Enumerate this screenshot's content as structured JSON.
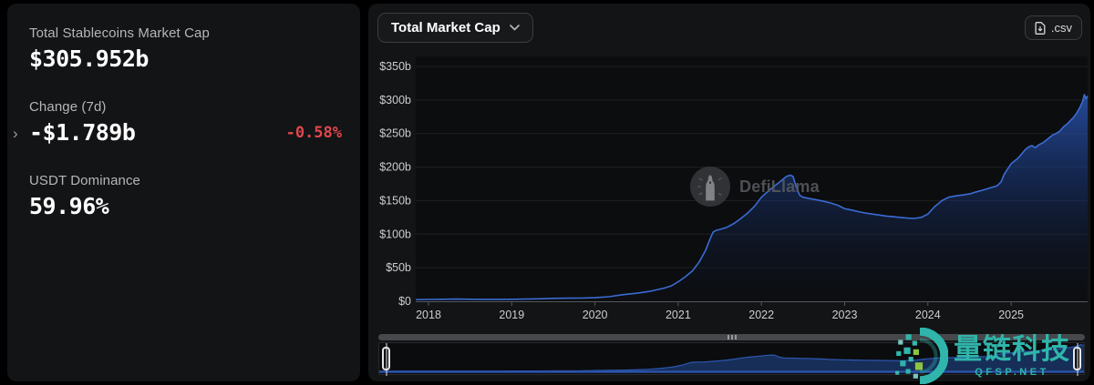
{
  "stats_panel": {
    "market_cap": {
      "label": "Total Stablecoins Market Cap",
      "value": "$305.952b"
    },
    "change_7d": {
      "label": "Change (7d)",
      "value": "-$1.789b",
      "pct": "-0.58%",
      "pct_color": "#e0484c"
    },
    "usdt_dominance": {
      "label": "USDT Dominance",
      "value": "59.96%"
    }
  },
  "chart_header": {
    "metric_dropdown": {
      "label": "Total Market Cap",
      "icon": "chevron-down-icon"
    },
    "csv_button": {
      "label": ".csv",
      "icon": "file-download-icon"
    }
  },
  "watermarks": {
    "defillama": {
      "label": "DefiLlama"
    },
    "qfsp": {
      "title": "量链科技",
      "subtitle": "QFSP.NET",
      "color": "#2fb5ab"
    }
  },
  "chart_data": {
    "type": "area",
    "title": "Total Market Cap",
    "xlabel": "",
    "ylabel": "",
    "x_ticks": [
      2018,
      2019,
      2020,
      2021,
      2022,
      2023,
      2024,
      2025
    ],
    "y_ticks": [
      0,
      50,
      100,
      150,
      200,
      250,
      300,
      350
    ],
    "y_tick_labels": [
      "$0",
      "$50b",
      "$100b",
      "$150b",
      "$200b",
      "$250b",
      "$300b",
      "$350b"
    ],
    "ylim": [
      0,
      350
    ],
    "xlim": [
      2017.85,
      2025.92
    ],
    "grid": true,
    "legend": "none",
    "line_color": "#3b6bd3",
    "units": "billions USD",
    "points": [
      [
        2017.85,
        2.5
      ],
      [
        2018.0,
        2.7
      ],
      [
        2018.17,
        3.0
      ],
      [
        2018.33,
        3.2
      ],
      [
        2018.5,
        3.0
      ],
      [
        2018.67,
        2.8
      ],
      [
        2018.83,
        2.9
      ],
      [
        2019.0,
        3.0
      ],
      [
        2019.17,
        3.3
      ],
      [
        2019.33,
        3.7
      ],
      [
        2019.5,
        4.3
      ],
      [
        2019.67,
        4.6
      ],
      [
        2019.83,
        4.8
      ],
      [
        2020.0,
        5.3
      ],
      [
        2020.17,
        6.8
      ],
      [
        2020.33,
        9.8
      ],
      [
        2020.5,
        12.0
      ],
      [
        2020.67,
        15.0
      ],
      [
        2020.83,
        19.5
      ],
      [
        2020.92,
        23.0
      ],
      [
        2021.0,
        29.0
      ],
      [
        2021.08,
        36.0
      ],
      [
        2021.17,
        45.0
      ],
      [
        2021.25,
        58.0
      ],
      [
        2021.33,
        76.0
      ],
      [
        2021.38,
        92.0
      ],
      [
        2021.42,
        103.0
      ],
      [
        2021.46,
        106.0
      ],
      [
        2021.5,
        107.0
      ],
      [
        2021.58,
        110.0
      ],
      [
        2021.67,
        116.0
      ],
      [
        2021.75,
        123.0
      ],
      [
        2021.83,
        131.0
      ],
      [
        2021.92,
        142.0
      ],
      [
        2022.0,
        155.0
      ],
      [
        2022.08,
        164.0
      ],
      [
        2022.17,
        173.0
      ],
      [
        2022.25,
        181.0
      ],
      [
        2022.3,
        186.0
      ],
      [
        2022.35,
        188.0
      ],
      [
        2022.38,
        186.0
      ],
      [
        2022.42,
        170.0
      ],
      [
        2022.46,
        158.0
      ],
      [
        2022.5,
        155.0
      ],
      [
        2022.58,
        153.0
      ],
      [
        2022.67,
        151.0
      ],
      [
        2022.75,
        149.0
      ],
      [
        2022.83,
        146.5
      ],
      [
        2022.92,
        143.0
      ],
      [
        2023.0,
        138.0
      ],
      [
        2023.08,
        136.0
      ],
      [
        2023.17,
        133.5
      ],
      [
        2023.25,
        131.5
      ],
      [
        2023.33,
        130.0
      ],
      [
        2023.42,
        128.5
      ],
      [
        2023.5,
        127.0
      ],
      [
        2023.58,
        126.0
      ],
      [
        2023.67,
        125.0
      ],
      [
        2023.75,
        124.0
      ],
      [
        2023.83,
        123.5
      ],
      [
        2023.92,
        125.0
      ],
      [
        2024.0,
        130.0
      ],
      [
        2024.08,
        141.0
      ],
      [
        2024.17,
        150.0
      ],
      [
        2024.25,
        155.0
      ],
      [
        2024.33,
        157.0
      ],
      [
        2024.42,
        158.5
      ],
      [
        2024.5,
        160.0
      ],
      [
        2024.58,
        163.0
      ],
      [
        2024.67,
        166.0
      ],
      [
        2024.75,
        169.0
      ],
      [
        2024.83,
        172.0
      ],
      [
        2024.88,
        178.0
      ],
      [
        2024.92,
        190.0
      ],
      [
        2025.0,
        205.0
      ],
      [
        2025.04,
        209.0
      ],
      [
        2025.08,
        213.0
      ],
      [
        2025.13,
        220.0
      ],
      [
        2025.17,
        226.0
      ],
      [
        2025.21,
        230.0
      ],
      [
        2025.25,
        232.0
      ],
      [
        2025.29,
        229.0
      ],
      [
        2025.33,
        233.0
      ],
      [
        2025.38,
        236.0
      ],
      [
        2025.42,
        240.0
      ],
      [
        2025.46,
        244.0
      ],
      [
        2025.5,
        248.0
      ],
      [
        2025.54,
        250.0
      ],
      [
        2025.58,
        253.0
      ],
      [
        2025.63,
        260.0
      ],
      [
        2025.67,
        264.0
      ],
      [
        2025.71,
        269.0
      ],
      [
        2025.75,
        274.0
      ],
      [
        2025.79,
        281.0
      ],
      [
        2025.83,
        290.0
      ],
      [
        2025.86,
        298.0
      ],
      [
        2025.88,
        308.0
      ],
      [
        2025.9,
        302.0
      ],
      [
        2025.92,
        306.0
      ]
    ]
  }
}
